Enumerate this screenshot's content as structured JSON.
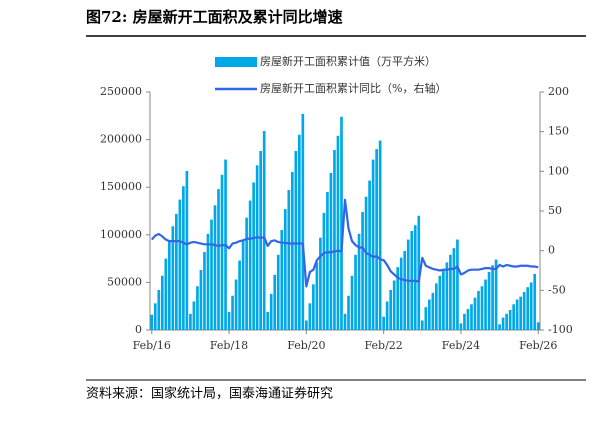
{
  "chart_data": {
    "type": "bar",
    "title": "图72:  房屋新开工面积及累计同比增速",
    "source": "资料来源：国家统计局，国泰海通证券研究",
    "categories": [
      "Feb/16",
      null,
      null,
      null,
      null,
      null,
      null,
      null,
      null,
      null,
      null,
      null,
      null,
      null,
      null,
      null,
      null,
      null,
      null,
      null,
      null,
      null,
      "Feb/18",
      null,
      null,
      null,
      null,
      null,
      null,
      null,
      null,
      null,
      null,
      null,
      null,
      null,
      null,
      null,
      null,
      null,
      null,
      null,
      null,
      null,
      "Feb/20",
      null,
      null,
      null,
      null,
      null,
      null,
      null,
      null,
      null,
      null,
      null,
      null,
      null,
      null,
      null,
      null,
      null,
      null,
      null,
      null,
      null,
      "Feb/22",
      null,
      null,
      null,
      null,
      null,
      null,
      null,
      null,
      null,
      null,
      null,
      null,
      null,
      null,
      null,
      null,
      null,
      null,
      null,
      null,
      null,
      "Feb/24",
      null,
      null,
      null,
      null,
      null,
      null,
      null,
      null,
      null,
      null,
      null,
      null,
      null,
      null,
      null,
      null,
      null,
      null,
      null,
      null,
      null,
      "Feb/26"
    ],
    "series": [
      {
        "name": "房屋新开工面积累计值（万平方米）",
        "type": "bar",
        "color": "#00a8e8",
        "values": [
          16000,
          28000,
          42000,
          57000,
          75000,
          94000,
          109000,
          122000,
          137000,
          151000,
          167000,
          17000,
          30000,
          46000,
          63000,
          82000,
          101000,
          116000,
          131000,
          148000,
          163000,
          179000,
          19000,
          36000,
          53000,
          73000,
          94000,
          118000,
          136000,
          155000,
          173000,
          188000,
          209000,
          19000,
          38000,
          58000,
          79000,
          105000,
          127000,
          147000,
          166000,
          188000,
          205000,
          227000,
          10000,
          28000,
          48000,
          71000,
          97000,
          123000,
          145000,
          165000,
          189000,
          204000,
          224000,
          17000,
          36000,
          57000,
          79000,
          101000,
          124000,
          140000,
          157000,
          179000,
          190000,
          199000,
          14000,
          30000,
          42000,
          52000,
          66000,
          76000,
          83000,
          95000,
          104000,
          110000,
          120000,
          10000,
          24000,
          32000,
          39000,
          49000,
          57000,
          63000,
          71000,
          79000,
          86000,
          95000,
          7000,
          17000,
          22000,
          27000,
          34000,
          41000,
          46000,
          53000,
          61000,
          68000,
          74000,
          6000,
          13000,
          17000,
          21000,
          27000,
          32000,
          35000,
          40000,
          45000,
          50000,
          59000,
          8000
        ]
      },
      {
        "name": "房屋新开工面积累计同比（%，右轴）",
        "type": "line",
        "axis": "y2",
        "color": "#3366e6",
        "values": [
          14,
          19,
          21,
          18,
          14,
          12,
          12,
          12,
          12,
          10,
          8,
          10,
          11,
          10,
          9,
          8,
          8,
          8,
          7,
          6,
          7,
          7,
          3,
          9,
          10,
          12,
          13,
          15,
          15,
          16,
          17,
          16,
          17,
          6,
          12,
          13,
          11,
          10,
          10,
          9,
          9,
          9,
          9,
          9,
          -45,
          -27,
          -24,
          -12,
          -7,
          -3,
          -2,
          -2,
          -1,
          0,
          -1,
          64,
          28,
          12,
          7,
          4,
          4,
          -3,
          -5,
          -8,
          -7,
          -11,
          -12,
          -18,
          -26,
          -30,
          -34,
          -36,
          -37,
          -38,
          -38,
          -38,
          -39,
          -9,
          -19,
          -21,
          -23,
          -24,
          -25,
          -24,
          -24,
          -23,
          -23,
          -20,
          -30,
          -28,
          -25,
          -24,
          -24,
          -24,
          -23,
          -22,
          -22,
          -23,
          -23,
          -18,
          -20,
          -18,
          -19,
          -20,
          -20,
          -19,
          -19,
          -19,
          -20,
          -20,
          -21
        ]
      }
    ],
    "ylim": [
      0,
      250000
    ],
    "yticks": [
      0,
      50000,
      100000,
      150000,
      200000,
      250000
    ],
    "y2lim": [
      -100,
      200
    ],
    "y2ticks": [
      -100,
      -50,
      0,
      50,
      100,
      150,
      200
    ]
  }
}
